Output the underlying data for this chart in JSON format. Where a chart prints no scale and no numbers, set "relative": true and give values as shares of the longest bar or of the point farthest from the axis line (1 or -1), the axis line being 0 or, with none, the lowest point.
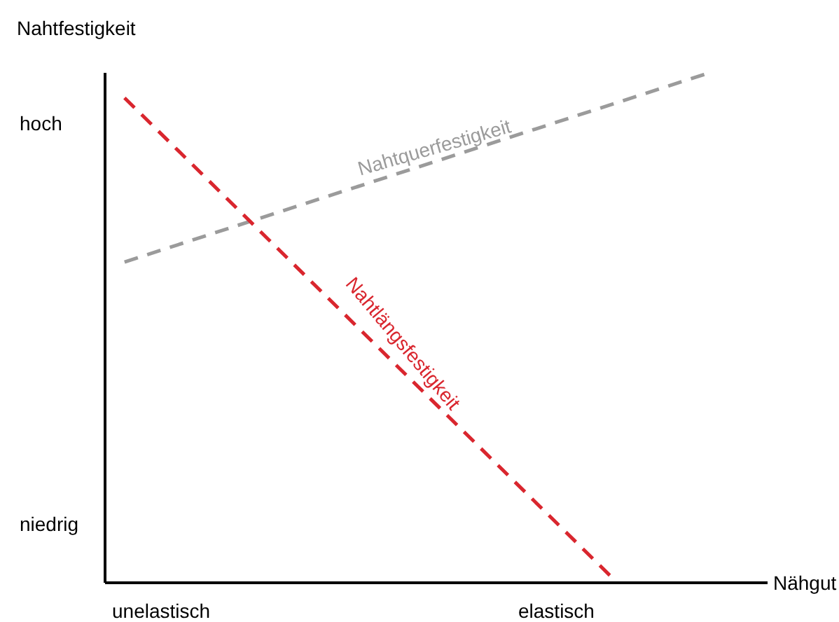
{
  "chart_data": {
    "type": "line",
    "relative": true,
    "ylabel": "Nahtfestigkeit",
    "xlabel": "Nähgut",
    "line_style": "dashed",
    "marker": "none",
    "categories": [
      null,
      null,
      null,
      null,
      null,
      null,
      null,
      null,
      null,
      null,
      null,
      null,
      null
    ],
    "series": [
      {
        "name": "Nahtquerfestigkeit",
        "color": "#9b9b9b",
        "values": [
          0.629,
          null,
          null,
          null,
          null,
          null,
          null,
          null,
          null,
          null,
          null,
          null,
          1
        ]
      },
      {
        "name": "Nahtlängsfestigkeit",
        "color": "#d9262e",
        "values": [
          0.951,
          null,
          null,
          null,
          null,
          null,
          null,
          null,
          null,
          null,
          0.011,
          null,
          null
        ]
      }
    ],
    "annotations": [
      "hoch",
      "niedrig",
      "unelastisch",
      "elastisch"
    ]
  }
}
